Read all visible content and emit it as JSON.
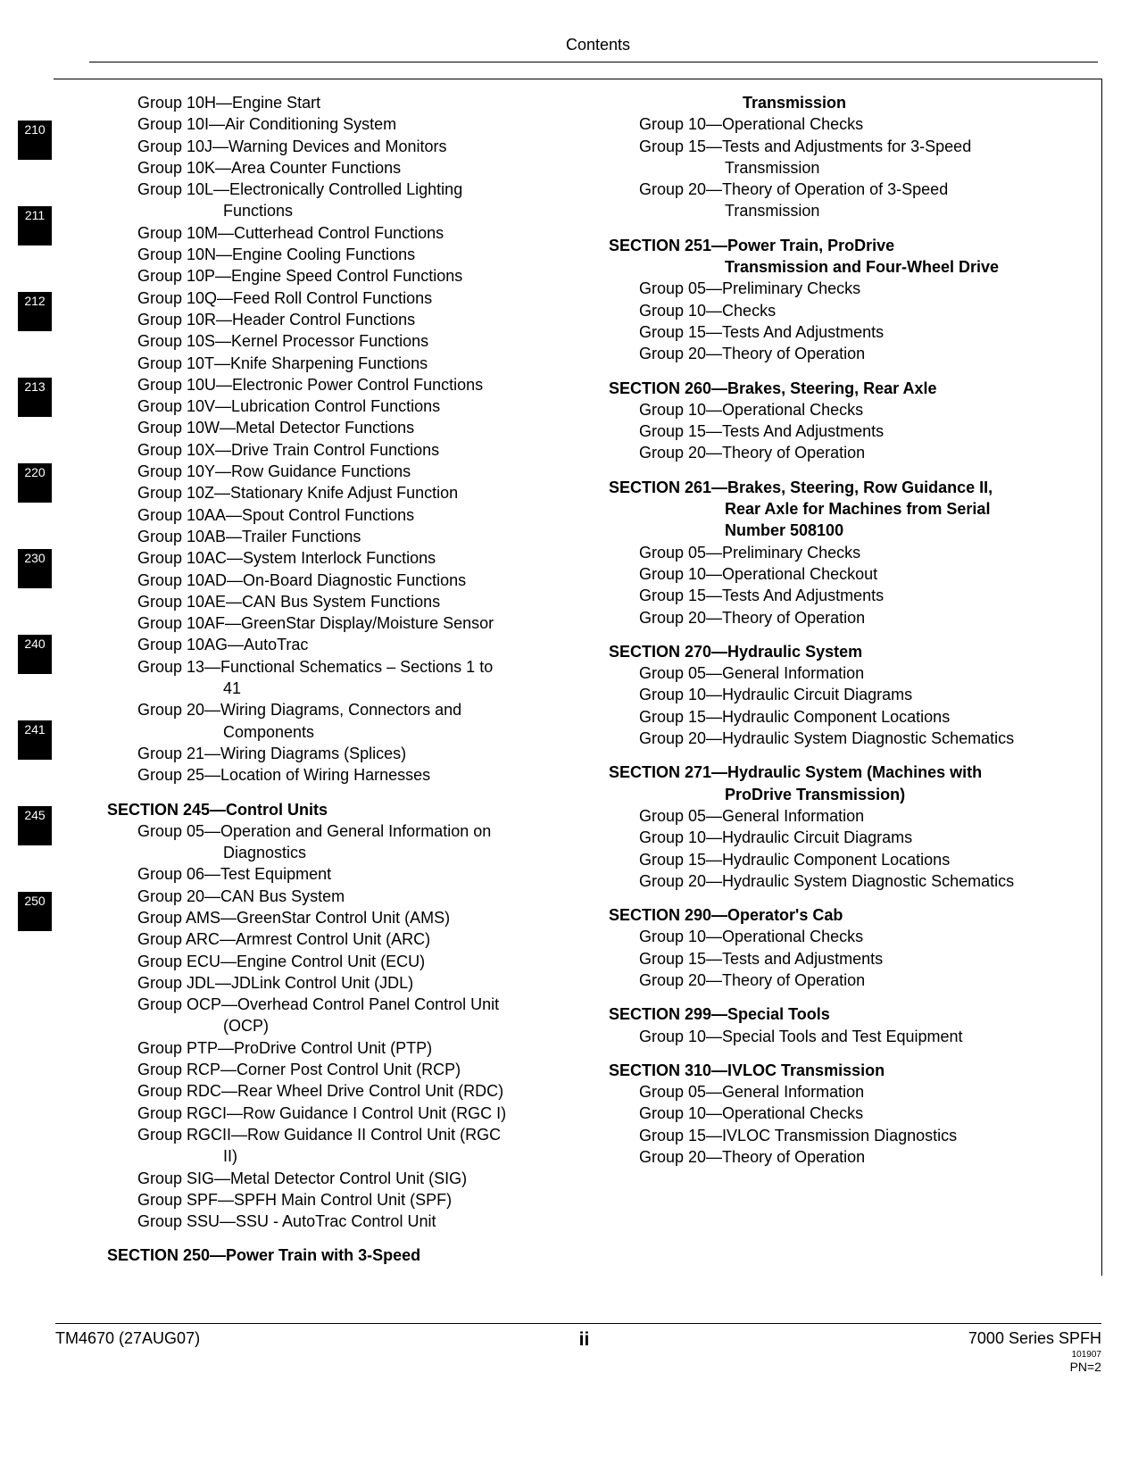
{
  "header": {
    "title": "Contents"
  },
  "tabs": [
    "210",
    "211",
    "212",
    "213",
    "220",
    "230",
    "240",
    "241",
    "245",
    "250"
  ],
  "left": {
    "initialGroups": [
      "Group 10H—Engine Start",
      "Group 10I—Air Conditioning System",
      "Group 10J—Warning Devices and Monitors",
      "Group 10K—Area Counter Functions"
    ],
    "g10L_a": "Group 10L—Electronically Controlled Lighting",
    "g10L_b": "Functions",
    "midGroups1": [
      "Group 10M—Cutterhead Control Functions",
      "Group 10N—Engine Cooling Functions",
      "Group 10P—Engine Speed Control Functions",
      "Group 10Q—Feed Roll Control Functions",
      "Group 10R—Header Control Functions",
      "Group 10S—Kernel Processor Functions",
      "Group 10T—Knife Sharpening Functions",
      "Group 10U—Electronic Power Control Functions",
      "Group 10V—Lubrication Control Functions",
      "Group 10W—Metal Detector Functions",
      "Group 10X—Drive Train Control Functions",
      "Group 10Y—Row Guidance Functions",
      "Group 10Z—Stationary Knife Adjust Function",
      "Group 10AA—Spout Control Functions",
      "Group 10AB—Trailer Functions",
      "Group 10AC—System Interlock Functions",
      "Group 10AD—On-Board Diagnostic Functions",
      "Group 10AE—CAN Bus System Functions",
      "Group 10AF—GreenStar Display/Moisture Sensor",
      "Group 10AG—AutoTrac"
    ],
    "g13_a": "Group 13—Functional Schematics – Sections 1 to",
    "g13_b": "41",
    "g20_a": "Group 20—Wiring Diagrams, Connectors and",
    "g20_b": "Components",
    "midGroups2": [
      "Group 21—Wiring Diagrams (Splices)",
      "Group 25—Location of Wiring Harnesses"
    ],
    "section245": "SECTION 245—Control Units",
    "g245_05a": "Group 05—Operation and General Information on",
    "g245_05b": "Diagnostics",
    "s245groups1": [
      "Group 06—Test Equipment",
      "Group 20—CAN Bus System",
      "Group AMS—GreenStar Control Unit (AMS)",
      "Group ARC—Armrest Control Unit (ARC)",
      "Group ECU—Engine Control Unit (ECU)",
      "Group JDL—JDLink Control Unit (JDL)"
    ],
    "gOCP_a": "Group OCP—Overhead Control Panel Control Unit",
    "gOCP_b": "(OCP)",
    "s245groups2": [
      "Group PTP—ProDrive Control Unit (PTP)",
      "Group RCP—Corner Post Control Unit (RCP)",
      "Group RDC—Rear Wheel Drive Control Unit (RDC)",
      "Group RGCI—Row Guidance I Control Unit (RGC I)"
    ],
    "gRGCII_a": "Group RGCII—Row Guidance II Control Unit (RGC",
    "gRGCII_b": "II)",
    "s245groups3": [
      "Group SIG—Metal Detector Control Unit (SIG)",
      "Group SPF—SPFH Main Control Unit (SPF)",
      "Group SSU—SSU - AutoTrac Control Unit"
    ],
    "section250": "SECTION 250—Power Train with 3-Speed"
  },
  "right": {
    "transHead": "Transmission",
    "s250g10": "Group 10—Operational Checks",
    "s250g15a": "Group 15—Tests and Adjustments for 3-Speed",
    "s250g15b": "Transmission",
    "s250g20a": "Group 20—Theory of Operation of 3-Speed",
    "s250g20b": "Transmission",
    "section251a": "SECTION 251—Power Train, ProDrive",
    "section251b": "Transmission and Four-Wheel Drive",
    "s251groups": [
      "Group 05—Preliminary Checks",
      "Group 10—Checks",
      "Group 15—Tests And Adjustments",
      "Group 20—Theory of Operation"
    ],
    "section260": "SECTION 260—Brakes, Steering, Rear Axle",
    "s260groups": [
      "Group 10—Operational Checks",
      "Group 15—Tests And Adjustments",
      "Group 20—Theory of Operation"
    ],
    "section261a": "SECTION 261—Brakes, Steering, Row Guidance II,",
    "section261b": "Rear Axle for Machines from Serial",
    "section261c": "Number 508100",
    "s261groups": [
      "Group 05—Preliminary Checks",
      "Group 10—Operational Checkout",
      "Group 15—Tests And Adjustments",
      "Group 20—Theory of Operation"
    ],
    "section270": "SECTION 270—Hydraulic System",
    "s270groups": [
      "Group 05—General Information",
      "Group 10—Hydraulic Circuit Diagrams",
      "Group 15—Hydraulic Component Locations",
      "Group 20—Hydraulic System Diagnostic Schematics"
    ],
    "section271a": "SECTION 271—Hydraulic System (Machines with",
    "section271b": "ProDrive Transmission)",
    "s271groups": [
      "Group 05—General Information",
      "Group 10—Hydraulic Circuit Diagrams",
      "Group 15—Hydraulic Component Locations",
      "Group 20—Hydraulic System Diagnostic Schematics"
    ],
    "section290": "SECTION 290—Operator's Cab",
    "s290groups": [
      "Group 10—Operational Checks",
      "Group 15—Tests and Adjustments",
      "Group 20—Theory of Operation"
    ],
    "section299": "SECTION 299—Special Tools",
    "s299groups": [
      "Group 10—Special Tools and Test Equipment"
    ],
    "section310": "SECTION 310—IVLOC Transmission",
    "s310groups": [
      "Group 05—General Information",
      "Group 10—Operational Checks",
      "Group 15—IVLOC Transmission Diagnostics",
      "Group 20—Theory of Operation"
    ]
  },
  "footer": {
    "left": "TM4670 (27AUG07)",
    "center": "ii",
    "right": "7000 Series SPFH",
    "tiny": "101907",
    "pn": "PN=2"
  }
}
